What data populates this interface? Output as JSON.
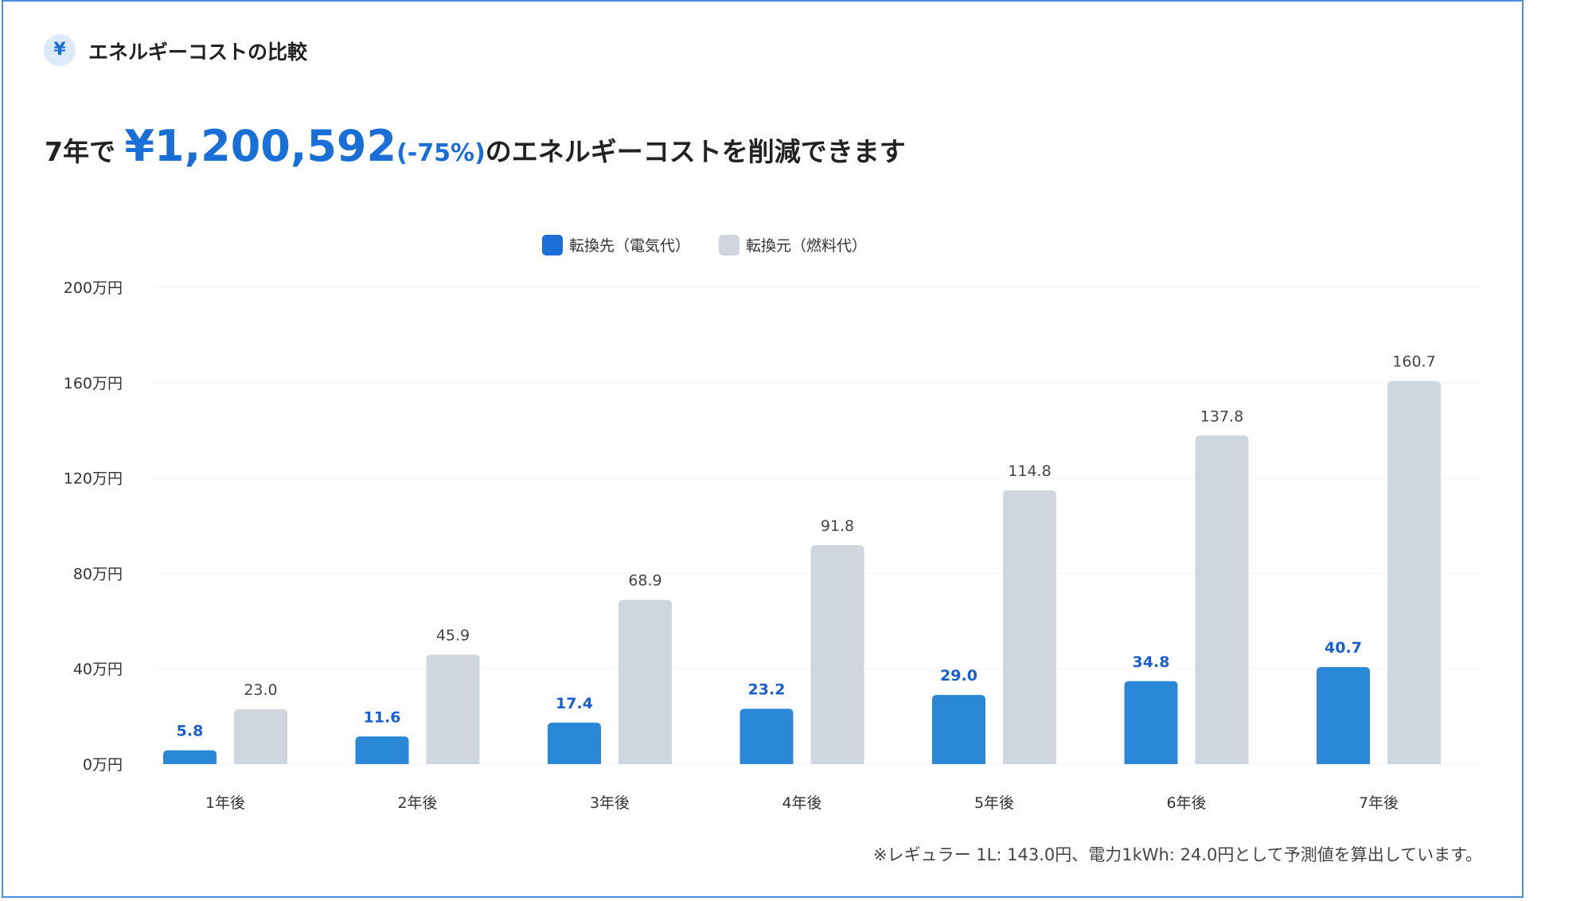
{
  "card": {
    "icon": "yen-icon",
    "icon_glyph": "¥",
    "title": "エネルギーコストの比較"
  },
  "headline": {
    "prefix": "7年で",
    "amount": "¥1,200,592",
    "percent": "(-75%)",
    "suffix": "のエネルギーコストを削減できます"
  },
  "colors": {
    "accent": "#1a6fd6",
    "series_electric": "#2a88d8",
    "series_fuel": "#cfd6de"
  },
  "chart_data": {
    "type": "bar",
    "categories": [
      "1年後",
      "2年後",
      "3年後",
      "4年後",
      "5年後",
      "6年後",
      "7年後"
    ],
    "series": [
      {
        "name": "転換先（電気代）",
        "values": [
          5.8,
          11.6,
          17.4,
          23.2,
          29.0,
          34.8,
          40.7
        ]
      },
      {
        "name": "転換元（燃料代）",
        "values": [
          23.0,
          45.9,
          68.9,
          91.8,
          114.8,
          137.8,
          160.7
        ]
      }
    ],
    "ylim": [
      0,
      200
    ],
    "yticks": [
      0,
      40,
      80,
      120,
      160,
      200
    ],
    "ytick_labels": [
      "0万円",
      "40万円",
      "80万円",
      "120万円",
      "160万円",
      "200万円"
    ],
    "legend": "top-center",
    "grid": true
  },
  "footnote": "※レギュラー 1L: 143.0円、電力1kWh: 24.0円として予測値を算出しています。"
}
